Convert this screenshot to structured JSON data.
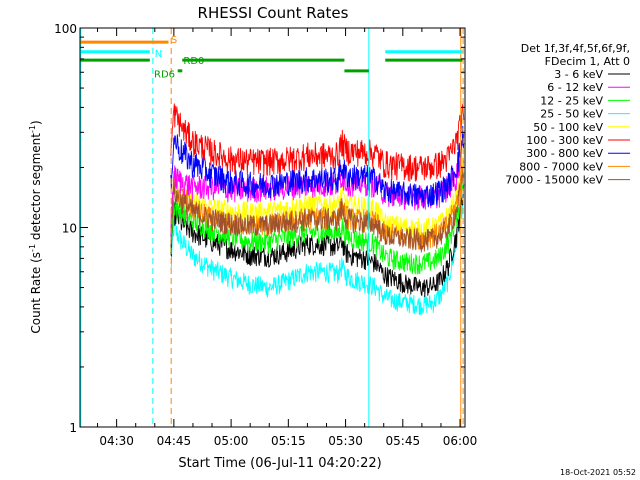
{
  "chart_data": {
    "type": "line",
    "title": "RHESSI Count Rates",
    "xlabel": "Start Time (06-Jul-11 04:20:22)",
    "ylabel_parts": [
      "Count Rate (s",
      "-1",
      " detector segment",
      "-1",
      ")"
    ],
    "ylabel": "Count Rate (s-1 detector segment-1)",
    "x_unit": "minutes since 04:20",
    "xlim": [
      20.4,
      121.3
    ],
    "ylim": [
      1,
      100
    ],
    "yscale": "log",
    "grid": false,
    "x_ticks": [
      {
        "value": 30,
        "label": "04:30"
      },
      {
        "value": 45,
        "label": "04:45"
      },
      {
        "value": 60,
        "label": "05:00"
      },
      {
        "value": 75,
        "label": "05:15"
      },
      {
        "value": 90,
        "label": "05:30"
      },
      {
        "value": 105,
        "label": "05:45"
      },
      {
        "value": 120,
        "label": "06:00"
      }
    ],
    "y_ticks": [
      {
        "value": 1,
        "label": "1"
      },
      {
        "value": 10,
        "label": "10"
      },
      {
        "value": 100,
        "label": "100"
      }
    ],
    "legend_header": [
      "Det 1f,3f,4f,5f,6f,9f,",
      "FDecim 1, Att 0"
    ],
    "legend_position": "right",
    "series": [
      {
        "name": "3 - 6 keV",
        "color": "#000000",
        "x": [
          44.2,
          45,
          47,
          50,
          55,
          60,
          65,
          70,
          75,
          80,
          85,
          88,
          89,
          90,
          92,
          95,
          98,
          100,
          103,
          106,
          110,
          113,
          115,
          117,
          119,
          120,
          121
        ],
        "y": [
          7,
          12,
          10.5,
          9.5,
          8.5,
          7.8,
          7.3,
          7.2,
          7.6,
          8.3,
          8.2,
          8.0,
          8.6,
          7.5,
          7.2,
          7.0,
          6.6,
          5.8,
          5.5,
          5.2,
          5.0,
          5.1,
          5.5,
          6.5,
          9,
          12,
          16
        ]
      },
      {
        "name": "6 - 12 keV",
        "color": "#ff00ff",
        "x": [
          44.2,
          45,
          47,
          50,
          55,
          60,
          65,
          70,
          75,
          80,
          85,
          88,
          89,
          90,
          92,
          95,
          98,
          100,
          103,
          106,
          110,
          113,
          115,
          117,
          119,
          120,
          121
        ],
        "y": [
          10,
          18,
          17,
          16,
          16,
          15.5,
          15.5,
          15.8,
          16,
          16.5,
          16.5,
          16.5,
          18.5,
          17,
          16.8,
          16.8,
          16.5,
          15,
          14.5,
          14.3,
          14.2,
          14.3,
          14.8,
          16,
          18,
          22,
          28
        ]
      },
      {
        "name": "12 - 25 keV",
        "color": "#00ff00",
        "x": [
          44.2,
          45,
          47,
          50,
          55,
          60,
          65,
          70,
          75,
          80,
          85,
          88,
          89,
          90,
          92,
          95,
          98,
          100,
          103,
          106,
          110,
          113,
          115,
          117,
          119,
          120,
          121
        ],
        "y": [
          8,
          13,
          12,
          10.8,
          9.8,
          9,
          8.5,
          8.5,
          9,
          9.5,
          9.5,
          9.4,
          10.3,
          9.2,
          8.8,
          8.6,
          8.2,
          7.2,
          6.9,
          6.7,
          6.6,
          6.8,
          7.2,
          8.5,
          11,
          14,
          19
        ]
      },
      {
        "name": "25 - 50 keV",
        "color": "#00ffff",
        "x": [
          44.2,
          45,
          47,
          50,
          55,
          60,
          65,
          70,
          75,
          80,
          85,
          88,
          89,
          90,
          92,
          95,
          98,
          100,
          103,
          106,
          110,
          113,
          115,
          117,
          119,
          120,
          121
        ],
        "y": [
          6,
          10,
          8.5,
          7.2,
          6.2,
          5.6,
          5.2,
          5.0,
          5.4,
          6.0,
          6.0,
          5.9,
          6.4,
          5.8,
          5.5,
          5.3,
          5.0,
          4.5,
          4.3,
          4.2,
          4.1,
          4.2,
          4.6,
          5.5,
          8,
          11,
          15
        ]
      },
      {
        "name": "50 - 100 keV",
        "color": "#ffff00",
        "x": [
          44.2,
          45,
          47,
          50,
          55,
          60,
          65,
          70,
          75,
          80,
          85,
          88,
          89,
          90,
          92,
          95,
          98,
          100,
          103,
          106,
          110,
          113,
          115,
          117,
          119,
          120,
          121
        ],
        "y": [
          9,
          16,
          14.5,
          13.5,
          12.5,
          12,
          11.8,
          12,
          12.5,
          13,
          13,
          13,
          14.5,
          13.2,
          12.8,
          12.6,
          12.3,
          10.5,
          10.2,
          10,
          9.8,
          10,
          10.5,
          11.5,
          14,
          17,
          22
        ]
      },
      {
        "name": "100 - 300 keV",
        "color": "#ff0000",
        "x": [
          44.2,
          45,
          47,
          50,
          55,
          60,
          65,
          70,
          75,
          80,
          85,
          88,
          89,
          90,
          92,
          95,
          98,
          100,
          103,
          106,
          110,
          113,
          115,
          117,
          119,
          120,
          121
        ],
        "y": [
          22,
          38,
          32,
          27,
          24,
          22,
          21.5,
          21.5,
          22,
          23,
          23,
          23,
          27,
          24.5,
          24,
          24,
          23.5,
          21,
          20.5,
          20.3,
          20,
          20.3,
          21,
          22.5,
          27,
          32,
          38
        ]
      },
      {
        "name": "300 - 800 keV",
        "color": "#0000ff",
        "x": [
          44.2,
          45,
          47,
          50,
          55,
          60,
          65,
          70,
          75,
          80,
          85,
          88,
          89,
          90,
          92,
          95,
          98,
          100,
          103,
          106,
          110,
          113,
          115,
          117,
          119,
          120,
          121
        ],
        "y": [
          16,
          28,
          24,
          21,
          18.5,
          17,
          16.5,
          16.5,
          17,
          17.5,
          17.5,
          17.5,
          20.5,
          18.5,
          18,
          18,
          17.5,
          15.5,
          15,
          14.8,
          14.5,
          14.8,
          15.5,
          16.5,
          20,
          24,
          30
        ]
      },
      {
        "name": "800 - 7000 keV",
        "color": "#ff8800",
        "x": [
          44.2,
          45,
          47,
          50,
          55,
          60,
          65,
          70,
          75,
          80,
          85,
          88,
          89,
          90,
          92,
          95,
          98,
          100,
          103,
          106,
          110,
          113,
          115,
          117,
          119,
          120,
          121
        ],
        "y": [
          10,
          17,
          14.5,
          12.5,
          11,
          10.5,
          10.3,
          10.3,
          10.8,
          11.2,
          11.2,
          11.2,
          12.8,
          11.5,
          11,
          10.9,
          10.6,
          9.5,
          9.2,
          9,
          8.9,
          9.1,
          9.6,
          10.5,
          13,
          16,
          21
        ]
      },
      {
        "name": "7000 - 15000 keV",
        "color": "#a0522d",
        "x": [
          44.2,
          45,
          47,
          50,
          55,
          60,
          65,
          70,
          75,
          80,
          85,
          88,
          89,
          90,
          92,
          95,
          98,
          100,
          103,
          106,
          110,
          113,
          115,
          117,
          119,
          120,
          121
        ],
        "y": [
          9,
          15,
          13.5,
          12,
          11,
          10.5,
          10.2,
          10.3,
          10.7,
          11,
          11,
          11,
          12.5,
          11.2,
          10.8,
          10.6,
          10.4,
          9.2,
          8.9,
          8.8,
          8.6,
          8.8,
          9.2,
          10,
          12,
          15,
          20
        ]
      }
    ],
    "state_bars": [
      {
        "color": "#ff8800",
        "y": 85,
        "segments": [
          [
            20.4,
            43.6
          ]
        ]
      },
      {
        "color": "#00ffff",
        "y": 76,
        "segments": [
          [
            20.4,
            38.7
          ],
          [
            100.4,
            120.6
          ]
        ]
      },
      {
        "color": "#00a000",
        "y": 69,
        "segments": [
          [
            20.4,
            38.7
          ],
          [
            47.2,
            89.7
          ],
          [
            100.4,
            120.6
          ]
        ]
      },
      {
        "color": "#00a000",
        "y": 61,
        "segments": [
          [
            46.0,
            47.2
          ],
          [
            89.7,
            96.1
          ]
        ]
      }
    ],
    "state_labels": [
      {
        "text": "S",
        "color": "#ff8800",
        "x": 44.2,
        "y": 88
      },
      {
        "text": "N",
        "color": "#00ffff",
        "x": 40.0,
        "y": 75
      },
      {
        "text": "RD0",
        "color": "#00a000",
        "x": 47.5,
        "y": 69
      },
      {
        "text": "RD6",
        "color": "#00a000",
        "x": 39.8,
        "y": 59
      }
    ],
    "vertical_markers": [
      {
        "x": 20.6,
        "color": "#00ffff",
        "style": "solid"
      },
      {
        "x": 39.5,
        "color": "#00ffff",
        "style": "dashed"
      },
      {
        "x": 44.3,
        "color": "#ff8800",
        "style": "dashed"
      },
      {
        "x": 96.1,
        "color": "#00ffff",
        "style": "solid"
      },
      {
        "x": 120.2,
        "color": "#ff8800",
        "style": "solid"
      },
      {
        "x": 120.8,
        "color": "#ff8800",
        "style": "dashed"
      }
    ],
    "timestamp": "18-Oct-2021 05:52"
  }
}
